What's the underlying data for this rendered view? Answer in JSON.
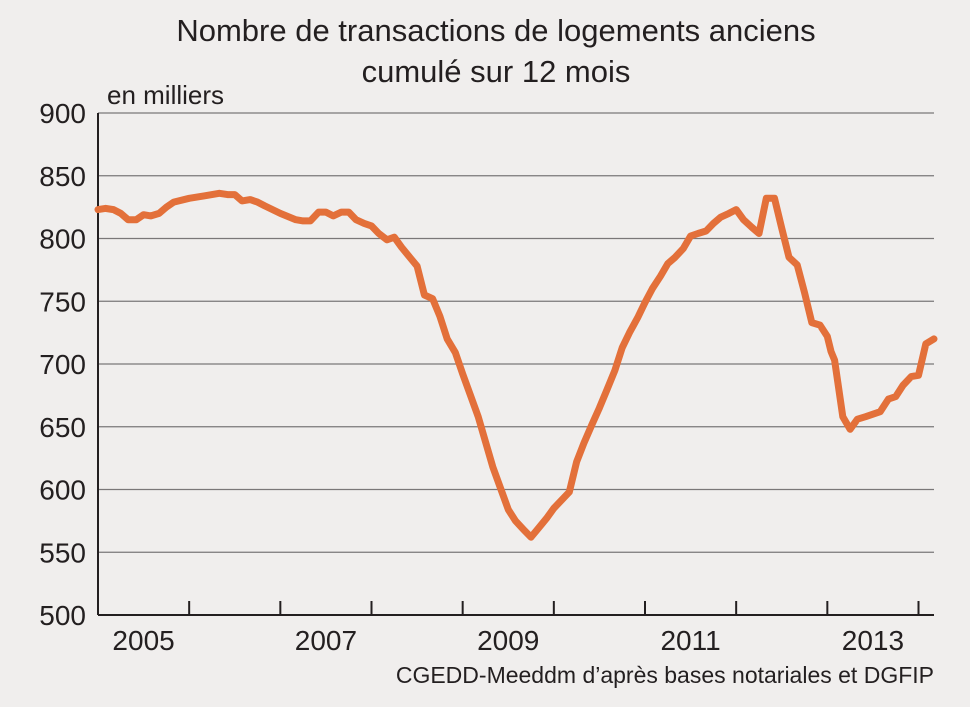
{
  "chart_data": {
    "type": "line",
    "title": "Nombre de transactions de logements anciens",
    "subtitle": "cumulé sur 12 mois",
    "unit_label": "en milliers",
    "source": "CGEDD-Meeddm d’après bases notariales et DGFIP",
    "ylim": [
      500,
      900
    ],
    "yticks": [
      "900",
      "850",
      "800",
      "750",
      "700",
      "650",
      "600",
      "550",
      "500"
    ],
    "xlim": [
      2004.0,
      2013.17
    ],
    "xtick_labels": [
      {
        "label": "2005",
        "x": 2004.5
      },
      {
        "label": "2007",
        "x": 2006.5
      },
      {
        "label": "2009",
        "x": 2008.5
      },
      {
        "label": "2011",
        "x": 2010.5
      },
      {
        "label": "2013",
        "x": 2012.5
      }
    ],
    "x_separators": [
      2005.0,
      2006.0,
      2007.0,
      2008.0,
      2009.0,
      2010.0,
      2011.0,
      2012.0,
      2013.0
    ],
    "grid": true,
    "line_color": "#e3703a",
    "grid_color": "#7a7778",
    "series": [
      {
        "x": [
          2004.0,
          2004.08,
          2004.17,
          2004.25,
          2004.33,
          2004.42,
          2004.5,
          2004.58,
          2004.67,
          2004.75,
          2004.83,
          2005.0,
          2005.17,
          2005.33,
          2005.42,
          2005.5,
          2005.58,
          2005.67,
          2005.75,
          2005.83,
          2006.0,
          2006.17,
          2006.25,
          2006.33,
          2006.42,
          2006.5,
          2006.58,
          2006.67,
          2006.75,
          2006.83,
          2006.92,
          2007.0,
          2007.08,
          2007.17,
          2007.25,
          2007.33,
          2007.42,
          2007.5,
          2007.58,
          2007.67,
          2007.75,
          2007.83,
          2007.92,
          2008.0,
          2008.08,
          2008.17,
          2008.25,
          2008.33,
          2008.42,
          2008.5,
          2008.58,
          2008.67,
          2008.75,
          2008.83,
          2008.92,
          2009.0,
          2009.17,
          2009.25,
          2009.33,
          2009.42,
          2009.5,
          2009.58,
          2009.67,
          2009.75,
          2009.83,
          2009.92,
          2010.0,
          2010.08,
          2010.17,
          2010.25,
          2010.33,
          2010.42,
          2010.5,
          2010.58,
          2010.67,
          2010.75,
          2010.83,
          2010.92,
          2011.0,
          2011.08,
          2011.17,
          2011.25,
          2011.33,
          2011.42,
          2011.5,
          2011.58,
          2011.67,
          2011.75,
          2011.83,
          2011.92,
          2012.0,
          2012.04,
          2012.08,
          2012.17,
          2012.25,
          2012.33,
          2012.42,
          2012.5,
          2012.58,
          2012.67,
          2012.75,
          2012.83,
          2012.92,
          2013.0,
          2013.08,
          2013.17
        ],
        "values": [
          823,
          824,
          823,
          820,
          815,
          815,
          819,
          818,
          820,
          825,
          829,
          832,
          834,
          836,
          835,
          835,
          830,
          831,
          829,
          826,
          820,
          815,
          814,
          814,
          821,
          821,
          818,
          821,
          821,
          815,
          812,
          810,
          804,
          799,
          801,
          793,
          785,
          778,
          755,
          752,
          738,
          720,
          709,
          692,
          676,
          658,
          638,
          618,
          600,
          584,
          575,
          568,
          562,
          569,
          577,
          585,
          598,
          622,
          637,
          652,
          665,
          679,
          695,
          713,
          725,
          737,
          749,
          760,
          770,
          780,
          785,
          792,
          802,
          804,
          806,
          812,
          817,
          820,
          823,
          815,
          809,
          804,
          832,
          832,
          808,
          785,
          779,
          757,
          733,
          731,
          722,
          710,
          703,
          658,
          648,
          656,
          658,
          660,
          662,
          672,
          674,
          683,
          690,
          691,
          716,
          720
        ]
      }
    ]
  }
}
